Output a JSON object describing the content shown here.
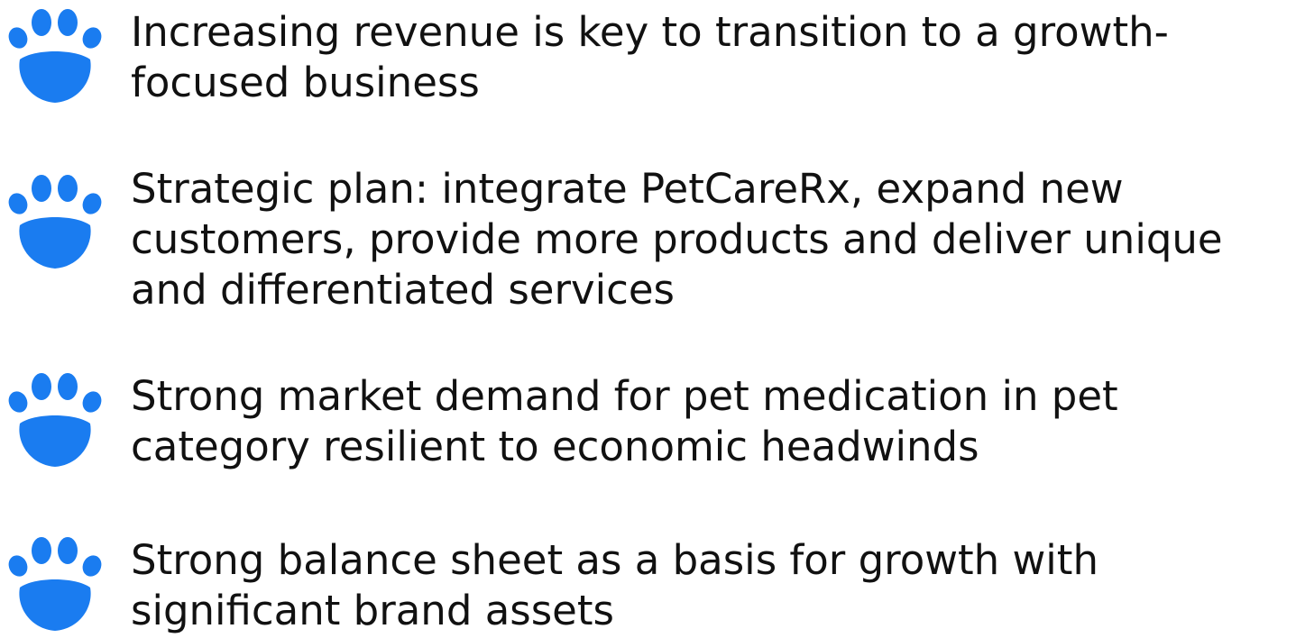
{
  "list": {
    "items": [
      "Increasing revenue is key to transition to a growth-focused business",
      "Strategic plan: integrate PetCareRx, expand new customers, provide more products and deliver unique and differentiated services",
      "Strong market demand for pet medication in pet category resilient to economic headwinds",
      "Strong balance sheet as a basis for growth with significant brand assets"
    ]
  }
}
